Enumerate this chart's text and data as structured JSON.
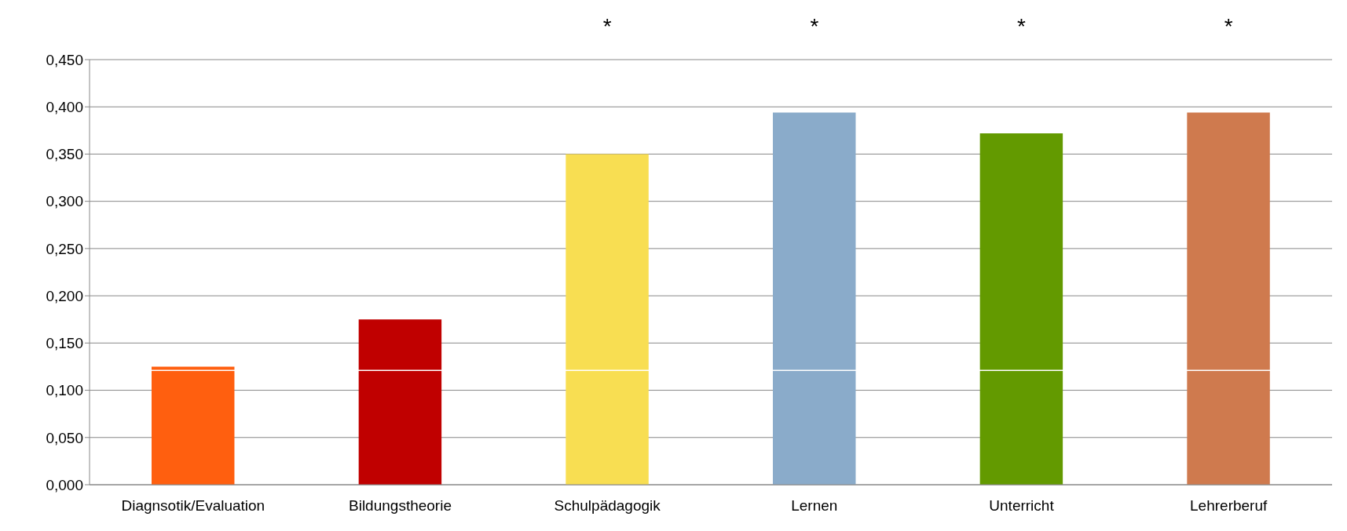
{
  "chart_data": {
    "type": "bar",
    "categories": [
      "Diagnsotik/Evaluation",
      "Bildungstheorie",
      "Schulpädagogik",
      "Lernen",
      "Unterricht",
      "Lehrerberuf"
    ],
    "values": [
      0.125,
      0.175,
      0.35,
      0.394,
      0.372,
      0.394
    ],
    "colors": [
      "#ff5f0f",
      "#c00000",
      "#f8de52",
      "#8aabca",
      "#639a00",
      "#cf7a4e"
    ],
    "ylim": [
      0,
      0.45
    ],
    "yticks": [
      {
        "value": 0,
        "label": "0,000"
      },
      {
        "value": 0.05,
        "label": "0,050"
      },
      {
        "value": 0.1,
        "label": "0,100"
      },
      {
        "value": 0.15,
        "label": "0,150"
      },
      {
        "value": 0.2,
        "label": "0,200"
      },
      {
        "value": 0.25,
        "label": "0,250"
      },
      {
        "value": 0.3,
        "label": "0,300"
      },
      {
        "value": 0.35,
        "label": "0,350"
      },
      {
        "value": 0.4,
        "label": "0,400"
      },
      {
        "value": 0.45,
        "label": "0,450"
      }
    ],
    "grid": "y",
    "legend": false,
    "ref_lines": [
      {
        "axis": "y",
        "value": 0.121,
        "color": "#ffffff"
      }
    ],
    "annotations": [
      "*",
      "*",
      "*",
      "*"
    ]
  }
}
